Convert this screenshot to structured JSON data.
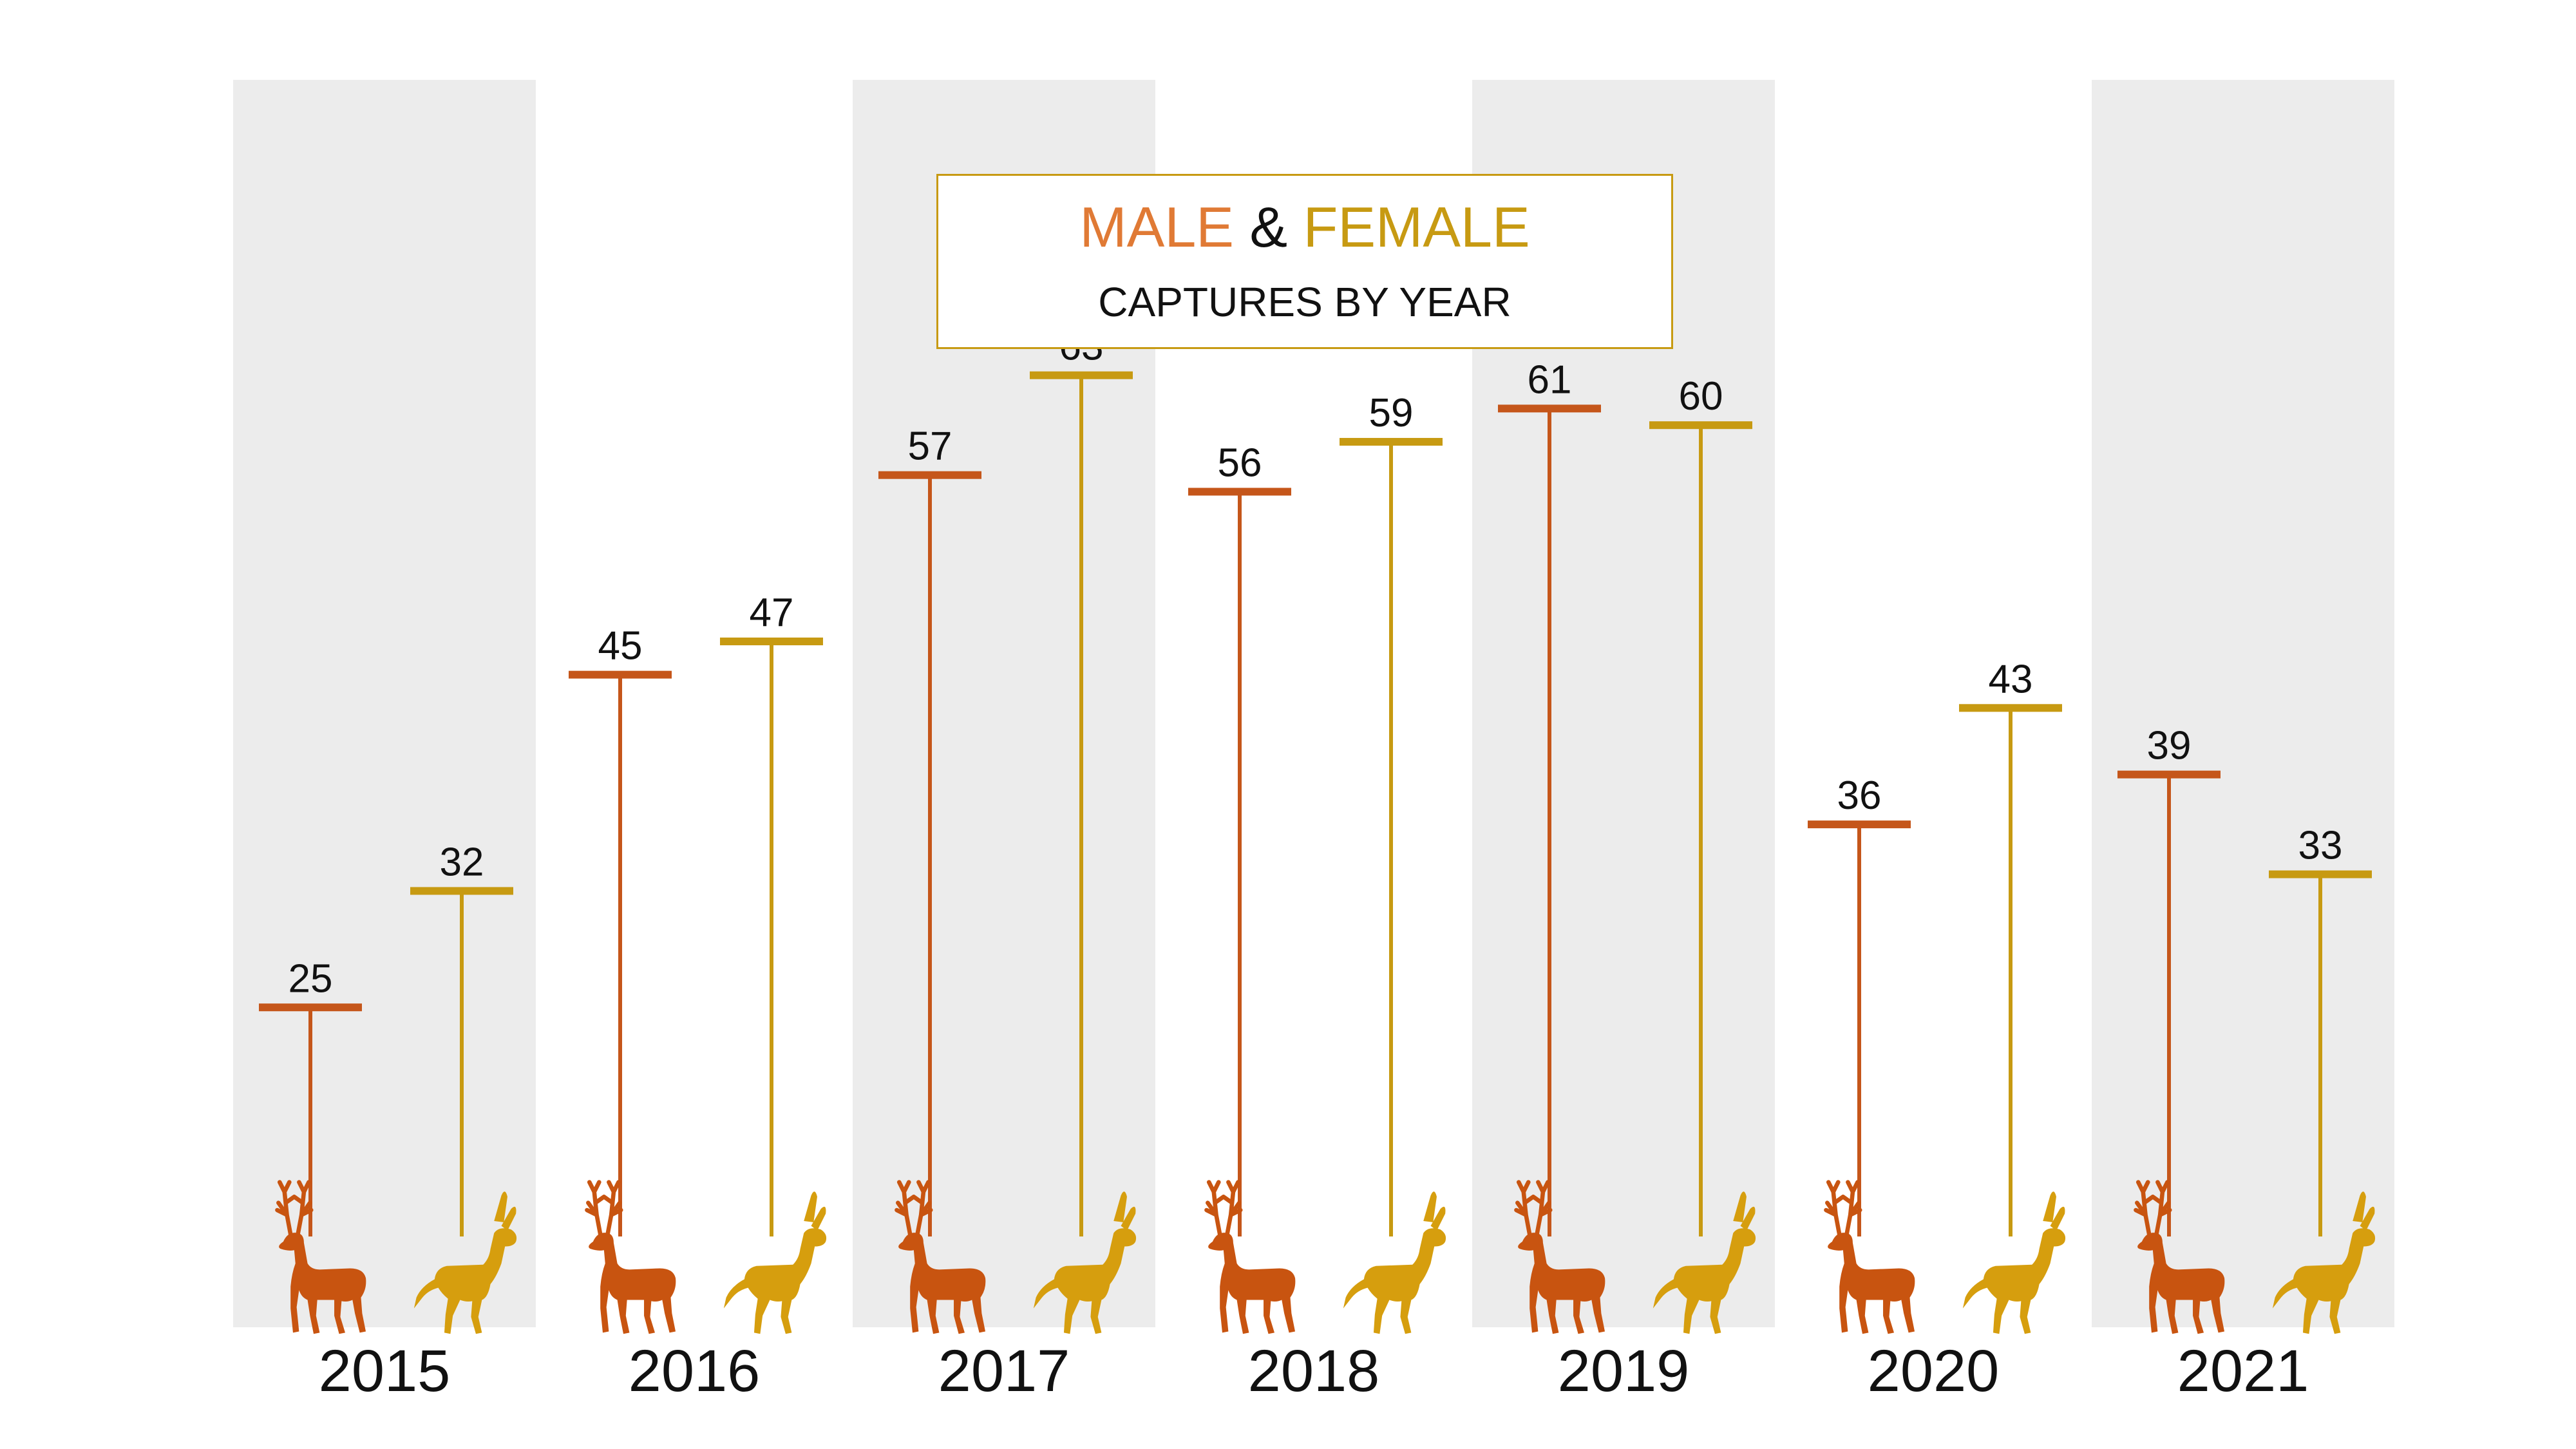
{
  "title": {
    "male_word": "MALE",
    "amp": "&",
    "female_word": "FEMALE",
    "subtitle": "CAPTURES BY YEAR"
  },
  "colors": {
    "male": "#c5561a",
    "female": "#c79a12",
    "male_deer": "#c85410",
    "female_deer": "#d69e0e",
    "title_male": "#e07a35",
    "title_female": "#c79a12",
    "band": "#ececec"
  },
  "chart_data": {
    "type": "bar",
    "categories": [
      "2015",
      "2016",
      "2017",
      "2018",
      "2019",
      "2020",
      "2021"
    ],
    "series": [
      {
        "name": "MALE",
        "values": [
          25,
          45,
          57,
          56,
          61,
          36,
          39
        ]
      },
      {
        "name": "FEMALE",
        "values": [
          32,
          47,
          63,
          59,
          60,
          43,
          33
        ]
      }
    ],
    "title": "MALE & FEMALE CAPTURES BY YEAR",
    "xlabel": "",
    "ylabel": "",
    "grid": false,
    "shaded_years": [
      "2015",
      "2017",
      "2019",
      "2021"
    ]
  }
}
